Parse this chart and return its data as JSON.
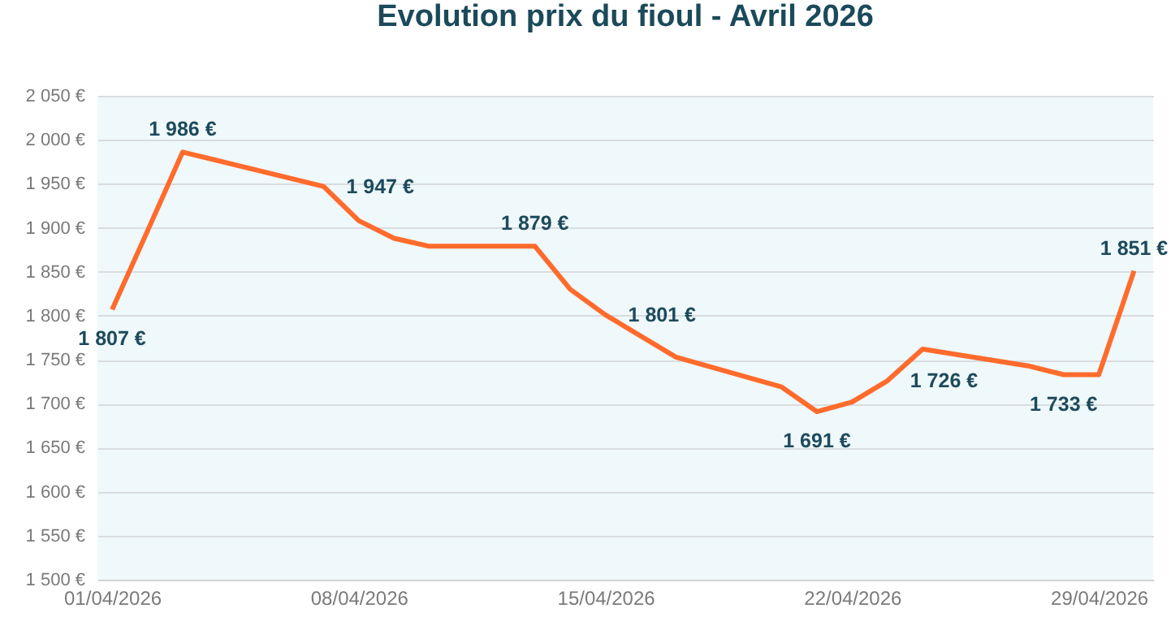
{
  "chart_data": {
    "type": "line",
    "title": "Evolution prix du fioul - Avril 2026",
    "x": [
      "2026-04-01",
      "2026-04-02",
      "2026-04-03",
      "2026-04-07",
      "2026-04-08",
      "2026-04-09",
      "2026-04-10",
      "2026-04-13",
      "2026-04-14",
      "2026-04-15",
      "2026-04-17",
      "2026-04-20",
      "2026-04-21",
      "2026-04-22",
      "2026-04-23",
      "2026-04-24",
      "2026-04-27",
      "2026-04-28",
      "2026-04-29",
      "2026-04-30"
    ],
    "series": [
      {
        "color": "#ff6b2c",
        "values": [
          1807,
          1896,
          1986,
          1947,
          1908,
          1888,
          1879,
          1879,
          1830,
          1801,
          1753,
          1719,
          1691,
          1702,
          1726,
          1762,
          1743,
          1733,
          1733,
          1851
        ],
        "value_labels": [
          "1 807 €",
          null,
          "1 986 €",
          "1 947 €",
          null,
          null,
          null,
          "1 879 €",
          null,
          "1 801 €",
          null,
          null,
          "1 691 €",
          null,
          "1 726 €",
          null,
          null,
          "1 733 €",
          null,
          "1 851 €"
        ]
      }
    ],
    "xlim": [
      "2026-03-31T14:00",
      "2026-04-30T13:00"
    ],
    "xticks": [
      {
        "value": "2026-04-01",
        "label": "01/04/2026"
      },
      {
        "value": "2026-04-08",
        "label": "08/04/2026"
      },
      {
        "value": "2026-04-15",
        "label": "15/04/2026"
      },
      {
        "value": "2026-04-22",
        "label": "22/04/2026"
      },
      {
        "value": "2026-04-29",
        "label": "29/04/2026"
      }
    ],
    "ylim": [
      1500,
      2050
    ],
    "yticks": [
      {
        "value": 1500,
        "label": "1 500 €"
      },
      {
        "value": 1550,
        "label": "1 550 €"
      },
      {
        "value": 1600,
        "label": "1 600 €"
      },
      {
        "value": 1650,
        "label": "1 650 €"
      },
      {
        "value": 1700,
        "label": "1 700 €"
      },
      {
        "value": 1750,
        "label": "1 750 €"
      },
      {
        "value": 1800,
        "label": "1 800 €"
      },
      {
        "value": 1850,
        "label": "1 850 €"
      },
      {
        "value": 1900,
        "label": "1 900 €"
      },
      {
        "value": 1950,
        "label": "1 950 €"
      },
      {
        "value": 2000,
        "label": "2 000 €"
      },
      {
        "value": 2050,
        "label": "2 050 €"
      }
    ],
    "grid": "y",
    "marker": "none",
    "line_style": "solid"
  }
}
